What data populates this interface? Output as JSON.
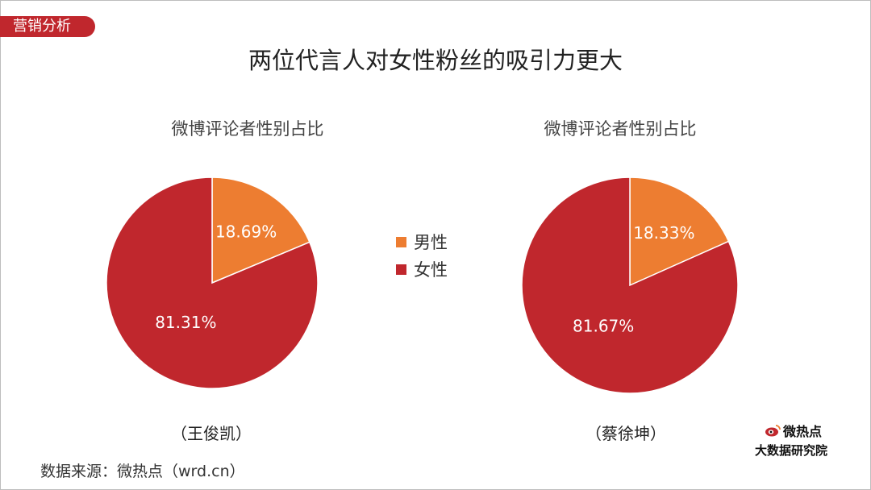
{
  "header": {
    "tag": "营销分析",
    "title": "两位代言人对女性粉丝的吸引力更大"
  },
  "legend": [
    {
      "label": "男性",
      "color": "#ed7d31"
    },
    {
      "label": "女性",
      "color": "#c0272d"
    }
  ],
  "chart_data": [
    {
      "type": "pie",
      "title": "微博评论者性别占比",
      "categories": [
        "男性",
        "女性"
      ],
      "values": [
        18.69,
        81.31
      ],
      "labels": [
        "18.69%",
        "81.31%"
      ],
      "colors": [
        "#ed7d31",
        "#c0272d"
      ],
      "caption": "（王俊凯）"
    },
    {
      "type": "pie",
      "title": "微博评论者性别占比",
      "categories": [
        "男性",
        "女性"
      ],
      "values": [
        18.33,
        81.67
      ],
      "labels": [
        "18.33%",
        "81.67%"
      ],
      "colors": [
        "#ed7d31",
        "#c0272d"
      ],
      "caption": "（蔡徐坤）"
    }
  ],
  "footer": {
    "source": "数据来源：微热点（wrd.cn）",
    "logo_top": "微热点",
    "logo_bottom": "大数据研究院"
  }
}
